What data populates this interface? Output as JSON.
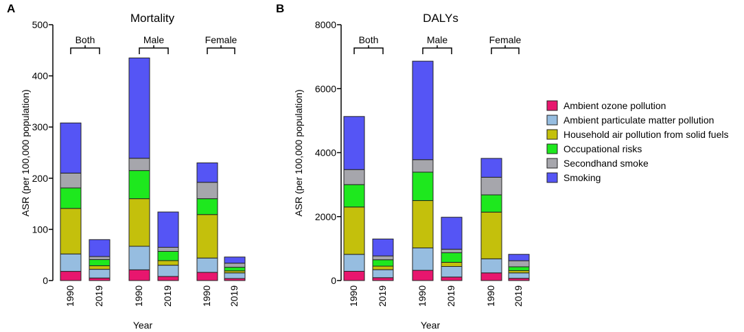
{
  "legend": {
    "entries": [
      {
        "name": "Ambient ozone pollution",
        "color": "#e8166e"
      },
      {
        "name": "Ambient particulate matter pollution",
        "color": "#96bde0"
      },
      {
        "name": "Household air pollution from solid fuels",
        "color": "#c4c00c"
      },
      {
        "name": "Occupational risks",
        "color": "#1ee81e"
      },
      {
        "name": "Secondhand smoke",
        "color": "#a6a6ac"
      },
      {
        "name": "Smoking",
        "color": "#5555f5"
      }
    ]
  },
  "chart_data": [
    {
      "type": "bar",
      "stacked": true,
      "panel": "A",
      "title": "Mortality",
      "xlabel": "Year",
      "ylabel": "ASR (per 100,000  population)",
      "ylim": [
        0,
        500
      ],
      "yticks": [
        0,
        100,
        200,
        300,
        400,
        500
      ],
      "categories": [
        "1990",
        "2019",
        "1990",
        "2019",
        "1990",
        "2019"
      ],
      "groups": [
        {
          "label": "Both",
          "bars": [
            0,
            1
          ]
        },
        {
          "label": "Male",
          "bars": [
            2,
            3
          ]
        },
        {
          "label": "Female",
          "bars": [
            4,
            5
          ]
        }
      ],
      "series": [
        {
          "name": "Ambient ozone pollution",
          "values": [
            18,
            5,
            21,
            8,
            16,
            4
          ]
        },
        {
          "name": "Ambient particulate matter pollution",
          "values": [
            34,
            17,
            46,
            22,
            28,
            11
          ]
        },
        {
          "name": "Household air pollution from solid fuels",
          "values": [
            89,
            7,
            93,
            9,
            85,
            4
          ]
        },
        {
          "name": "Occupational risks",
          "values": [
            40,
            12,
            55,
            18,
            31,
            7
          ]
        },
        {
          "name": "Secondhand smoke",
          "values": [
            29,
            6,
            24,
            8,
            32,
            8
          ]
        },
        {
          "name": "Smoking",
          "values": [
            98,
            33,
            196,
            69,
            38,
            12
          ]
        }
      ]
    },
    {
      "type": "bar",
      "stacked": true,
      "panel": "B",
      "title": "DALYs",
      "xlabel": "Year",
      "ylabel": "ASR (per 100,000 population)",
      "ylim": [
        0,
        8000
      ],
      "yticks": [
        0,
        2000,
        4000,
        6000,
        8000
      ],
      "categories": [
        "1990",
        "2019",
        "1990",
        "2019",
        "1990",
        "2019"
      ],
      "groups": [
        {
          "label": "Both",
          "bars": [
            0,
            1
          ]
        },
        {
          "label": "Male",
          "bars": [
            2,
            3
          ]
        },
        {
          "label": "Female",
          "bars": [
            4,
            5
          ]
        }
      ],
      "series": [
        {
          "name": "Ambient ozone pollution",
          "values": [
            290,
            90,
            320,
            110,
            240,
            70
          ]
        },
        {
          "name": "Ambient particulate matter pollution",
          "values": [
            530,
            250,
            700,
            330,
            440,
            170
          ]
        },
        {
          "name": "Household air pollution from solid fuels",
          "values": [
            1480,
            110,
            1480,
            130,
            1460,
            70
          ]
        },
        {
          "name": "Occupational risks",
          "values": [
            700,
            200,
            890,
            300,
            540,
            120
          ]
        },
        {
          "name": "Secondhand smoke",
          "values": [
            470,
            120,
            390,
            110,
            550,
            190
          ]
        },
        {
          "name": "Smoking",
          "values": [
            1660,
            530,
            3080,
            1000,
            590,
            200
          ]
        }
      ]
    }
  ]
}
